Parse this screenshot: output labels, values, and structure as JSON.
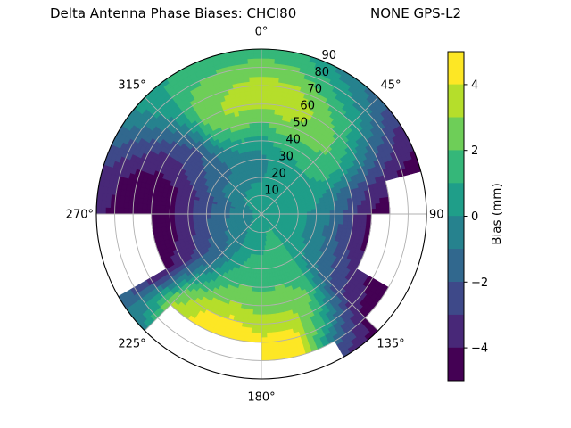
{
  "title": {
    "left": "Delta Antenna Phase Biases: CHCI80",
    "right": "NONE GPS-L2"
  },
  "polar_axis": {
    "azimuth_ticks": [
      {
        "angle_deg": 0,
        "label": "0°"
      },
      {
        "angle_deg": 45,
        "label": "45°"
      },
      {
        "angle_deg": 90,
        "label": "90"
      },
      {
        "angle_deg": 135,
        "label": "135°"
      },
      {
        "angle_deg": 180,
        "label": "180°"
      },
      {
        "angle_deg": 225,
        "label": "225°"
      },
      {
        "angle_deg": 270,
        "label": "270°"
      },
      {
        "angle_deg": 315,
        "label": "315°"
      }
    ],
    "radial_tick_values": [
      10,
      20,
      30,
      40,
      50,
      60,
      70,
      80,
      90
    ],
    "radial_tick_labels": [
      "10",
      "20",
      "30",
      "40",
      "50",
      "60",
      "70",
      "80",
      "90"
    ],
    "rlabel_angle_deg": 23,
    "grid_color": "#b0b0b0"
  },
  "colorbar": {
    "label": "Bias (mm)",
    "tick_values": [
      4,
      2,
      0,
      -2,
      -4
    ],
    "tick_labels": [
      "4",
      "2",
      "0",
      "−2",
      "−4"
    ],
    "vmin": -5,
    "vmax": 5
  },
  "chart_data": {
    "type": "heatmap",
    "projection": "polar",
    "title": "Delta Antenna Phase Biases: CHCI80        NONE GPS-L2",
    "value_label": "Bias (mm)",
    "unit": "mm",
    "azimuth_deg": [
      0,
      15,
      30,
      45,
      60,
      75,
      90,
      105,
      120,
      135,
      150,
      165,
      180,
      195,
      210,
      225,
      240,
      255,
      270,
      285,
      300,
      315,
      330,
      345
    ],
    "zenith_deg": [
      0,
      10,
      20,
      30,
      40,
      50,
      60,
      70,
      80,
      90
    ],
    "levels": [
      -5,
      -4,
      -3,
      -2,
      -1,
      0,
      1,
      2,
      3,
      4,
      5
    ],
    "colors": [
      "#440154",
      "#482878",
      "#3e4989",
      "#31688e",
      "#26828e",
      "#1f9e89",
      "#35b779",
      "#6ece58",
      "#b5de2b",
      "#fde725"
    ],
    "no_data": "null = masked (white)",
    "values": [
      [
        0.3,
        0.4,
        -0.1,
        -0.4,
        0.6,
        1.8,
        3.3,
        3.5,
        2.5,
        1.4
      ],
      [
        0.3,
        0.5,
        0.2,
        0.4,
        1.3,
        2.8,
        3.5,
        3.3,
        2.2,
        1.0
      ],
      [
        0.3,
        0.5,
        0.3,
        0.6,
        1.5,
        2.6,
        3.0,
        2.2,
        0.8,
        -0.4
      ],
      [
        0.3,
        0.5,
        0.4,
        0.8,
        1.6,
        2.2,
        1.8,
        0.8,
        -0.6,
        -1.6
      ],
      [
        0.3,
        0.4,
        0.5,
        0.8,
        1.2,
        1.0,
        0.0,
        -1.4,
        -2.6,
        -3.6
      ],
      [
        0.3,
        0.4,
        0.4,
        0.3,
        -0.6,
        -1.8,
        -2.8,
        -3.7,
        -4.4,
        -4.6
      ],
      [
        0.3,
        0.3,
        0.2,
        -0.2,
        -1.2,
        -2.8,
        -4.3,
        -4.6,
        null,
        null
      ],
      [
        0.3,
        0.3,
        0.2,
        -0.3,
        -1.6,
        -3.2,
        -4.5,
        null,
        null,
        null
      ],
      [
        0.3,
        0.4,
        0.3,
        -0.2,
        -1.2,
        -2.4,
        -3.5,
        -4.4,
        -4.6,
        null
      ],
      [
        0.4,
        0.5,
        0.4,
        0.2,
        -0.8,
        -1.8,
        -2.8,
        -3.6,
        -4.3,
        -4.6
      ],
      [
        0.4,
        1.1,
        1.3,
        1.5,
        1.7,
        2.0,
        1.8,
        0.6,
        -1.4,
        -2.8
      ],
      [
        0.4,
        1.0,
        1.6,
        1.8,
        2.0,
        2.6,
        3.6,
        4.5,
        4.6,
        null
      ],
      [
        0.3,
        0.4,
        0.8,
        1.6,
        1.8,
        2.4,
        3.4,
        4.3,
        4.6,
        null
      ],
      [
        0.3,
        0.4,
        0.8,
        1.4,
        2.0,
        3.0,
        4.2,
        4.7,
        null,
        null
      ],
      [
        0.3,
        0.2,
        0.1,
        0.5,
        1.4,
        2.6,
        4.0,
        4.6,
        null,
        null
      ],
      [
        0.3,
        0.0,
        -0.5,
        -1.2,
        -0.8,
        0.6,
        2.2,
        3.2,
        1.8,
        -0.2
      ],
      [
        0.3,
        -0.2,
        -0.8,
        -1.8,
        -2.8,
        -3.6,
        -4.2,
        -3.8,
        -2.6,
        -1.5
      ],
      [
        0.3,
        -0.3,
        -1.0,
        -2.0,
        -3.2,
        -4.3,
        -4.6,
        null,
        null,
        null
      ],
      [
        0.3,
        -0.4,
        -1.2,
        -2.2,
        -3.2,
        -4.4,
        -4.7,
        -4.7,
        -4.3,
        -3.6
      ],
      [
        0.3,
        -0.4,
        -1.4,
        -2.4,
        -3.4,
        -4.2,
        -4.6,
        -4.5,
        -3.9,
        -3.2
      ],
      [
        0.3,
        -0.1,
        -0.7,
        -1.5,
        -2.4,
        -3.1,
        -3.4,
        -2.9,
        -2.0,
        -1.2
      ],
      [
        0.3,
        0.2,
        -0.5,
        -1.4,
        -1.8,
        -2.0,
        -1.4,
        -0.4,
        0.4,
        0.8
      ],
      [
        0.3,
        0.3,
        -0.3,
        -0.9,
        -0.2,
        1.6,
        2.6,
        2.4,
        1.8,
        1.0
      ],
      [
        0.3,
        0.4,
        -0.2,
        -0.5,
        0.8,
        2.6,
        3.3,
        3.0,
        2.2,
        1.3
      ]
    ]
  }
}
